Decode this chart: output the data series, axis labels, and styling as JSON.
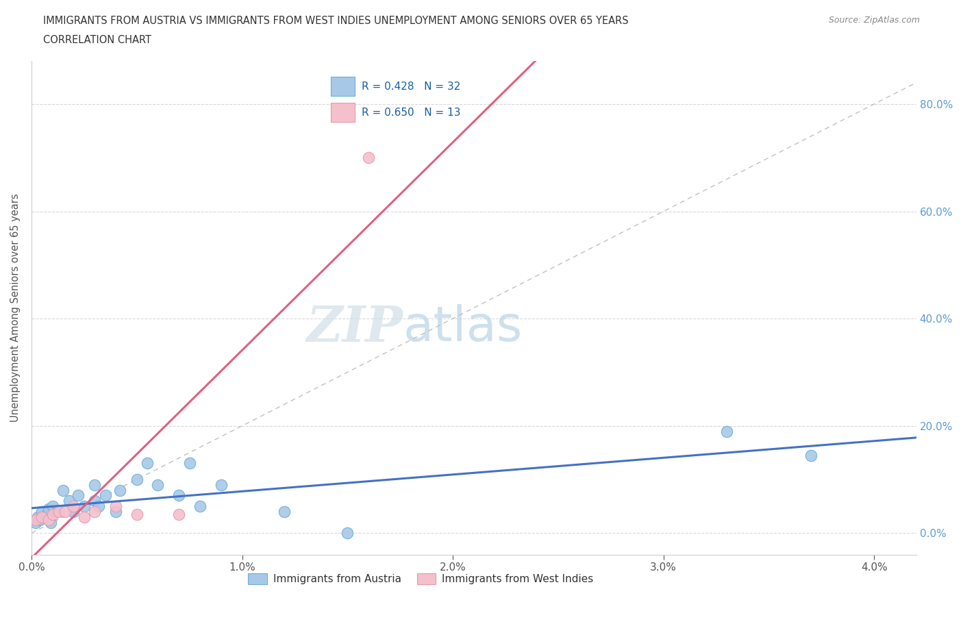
{
  "title_line1": "IMMIGRANTS FROM AUSTRIA VS IMMIGRANTS FROM WEST INDIES UNEMPLOYMENT AMONG SENIORS OVER 65 YEARS",
  "title_line2": "CORRELATION CHART",
  "source_text": "Source: ZipAtlas.com",
  "ylabel": "Unemployment Among Seniors over 65 years",
  "xlim": [
    0.0,
    0.042
  ],
  "ylim": [
    -0.04,
    0.88
  ],
  "xticks": [
    0.0,
    0.01,
    0.02,
    0.03,
    0.04
  ],
  "xtick_labels": [
    "0.0%",
    "1.0%",
    "2.0%",
    "3.0%",
    "4.0%"
  ],
  "yticks": [
    0.0,
    0.2,
    0.4,
    0.6,
    0.8
  ],
  "ytick_labels_right": [
    "0.0%",
    "20.0%",
    "40.0%",
    "60.0%",
    "80.0%"
  ],
  "austria_color": "#a8c8e8",
  "austria_edge_color": "#6aaed6",
  "west_indies_color": "#f4c0cc",
  "west_indies_edge_color": "#e898a8",
  "trend_austria_color": "#4472c4",
  "trend_wi_color": "#e06080",
  "R_austria": 0.428,
  "N_austria": 32,
  "R_wi": 0.65,
  "N_wi": 13,
  "austria_scatter_x": [
    0.0002,
    0.0003,
    0.0004,
    0.0005,
    0.0006,
    0.0007,
    0.0008,
    0.0009,
    0.001,
    0.0012,
    0.0015,
    0.0018,
    0.002,
    0.0022,
    0.0025,
    0.003,
    0.003,
    0.0032,
    0.0035,
    0.004,
    0.0042,
    0.005,
    0.0055,
    0.006,
    0.007,
    0.0075,
    0.008,
    0.009,
    0.012,
    0.015,
    0.033,
    0.037
  ],
  "austria_scatter_y": [
    0.02,
    0.03,
    0.025,
    0.04,
    0.03,
    0.035,
    0.045,
    0.02,
    0.05,
    0.04,
    0.08,
    0.06,
    0.04,
    0.07,
    0.05,
    0.06,
    0.09,
    0.05,
    0.07,
    0.04,
    0.08,
    0.1,
    0.13,
    0.09,
    0.07,
    0.13,
    0.05,
    0.09,
    0.04,
    0.0,
    0.19,
    0.145
  ],
  "wi_scatter_x": [
    0.0002,
    0.0005,
    0.0008,
    0.001,
    0.0013,
    0.0016,
    0.002,
    0.0025,
    0.003,
    0.004,
    0.005,
    0.007,
    0.016
  ],
  "wi_scatter_y": [
    0.025,
    0.03,
    0.025,
    0.035,
    0.04,
    0.04,
    0.05,
    0.03,
    0.04,
    0.05,
    0.035,
    0.035,
    0.7
  ],
  "watermark_zip": "ZIP",
  "watermark_atlas": "atlas",
  "background_color": "#ffffff",
  "grid_color": "#d8d8d8",
  "ref_line_color": "#c0c0c0"
}
